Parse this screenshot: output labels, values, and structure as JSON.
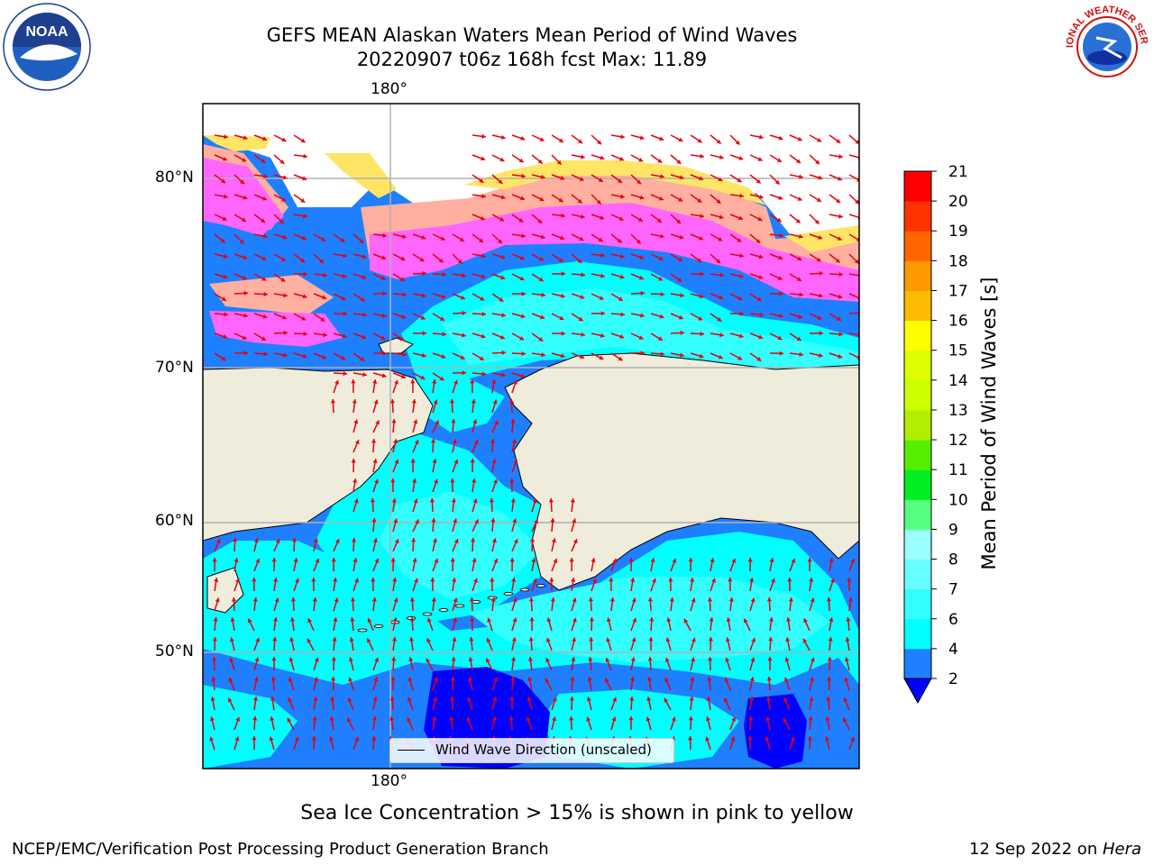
{
  "header": {
    "title_line1": "GEFS MEAN Alaskan Waters Mean Period of Wind Waves",
    "title_line2": "20220907 t06z 168h fcst   Max: 11.89"
  },
  "map": {
    "lon_label_top": "180°",
    "lon_label_bottom": "180°",
    "lat_labels": [
      "80°N",
      "70°N",
      "60°N",
      "50°N"
    ],
    "colors": {
      "land": "#efecdc",
      "arrow": "#e8000b",
      "gridline": "#b0b0b0",
      "ice_pink": "#ff66ff",
      "ice_peach": "#ffb0a0",
      "ice_yellow": "#ffe566"
    }
  },
  "legend": {
    "label": "Wind Wave Direction (unscaled)"
  },
  "colorbar": {
    "label": "Mean Period of Wind Waves [s]",
    "ticks": [
      "2",
      "4",
      "6",
      "7",
      "8",
      "9",
      "10",
      "11",
      "12",
      "13",
      "14",
      "15",
      "16",
      "17",
      "18",
      "19",
      "20",
      "21"
    ],
    "bands": [
      {
        "from": "2",
        "to": "4",
        "color": "#1e7fff"
      },
      {
        "from": "4",
        "to": "6",
        "color": "#00ffff"
      },
      {
        "from": "6",
        "to": "7",
        "color": "#33ffff"
      },
      {
        "from": "7",
        "to": "8",
        "color": "#66ffff"
      },
      {
        "from": "8",
        "to": "9",
        "color": "#99ffff"
      },
      {
        "from": "9",
        "to": "10",
        "color": "#55ff7f"
      },
      {
        "from": "10",
        "to": "11",
        "color": "#00ee22"
      },
      {
        "from": "11",
        "to": "12",
        "color": "#55ee00"
      },
      {
        "from": "12",
        "to": "13",
        "color": "#b2ee00"
      },
      {
        "from": "13",
        "to": "14",
        "color": "#ccff00"
      },
      {
        "from": "14",
        "to": "15",
        "color": "#ddff00"
      },
      {
        "from": "15",
        "to": "16",
        "color": "#ffff00"
      },
      {
        "from": "16",
        "to": "17",
        "color": "#ffbb00"
      },
      {
        "from": "17",
        "to": "18",
        "color": "#ff9900"
      },
      {
        "from": "18",
        "to": "19",
        "color": "#ff6600"
      },
      {
        "from": "19",
        "to": "20",
        "color": "#ff3300"
      },
      {
        "from": "20",
        "to": "21",
        "color": "#ff0000"
      }
    ],
    "under_color": "#0000ff"
  },
  "caption": "Sea Ice Concentration > 15% is shown in pink to yellow",
  "footer": {
    "left": "NCEP/EMC/Verification Post Processing Product Generation Branch",
    "right_date": "12 Sep 2022 on ",
    "right_host": "Hera"
  },
  "logos": {
    "left_text": "NOAA",
    "right_text": "NATIONAL WEATHER SERVICE"
  }
}
